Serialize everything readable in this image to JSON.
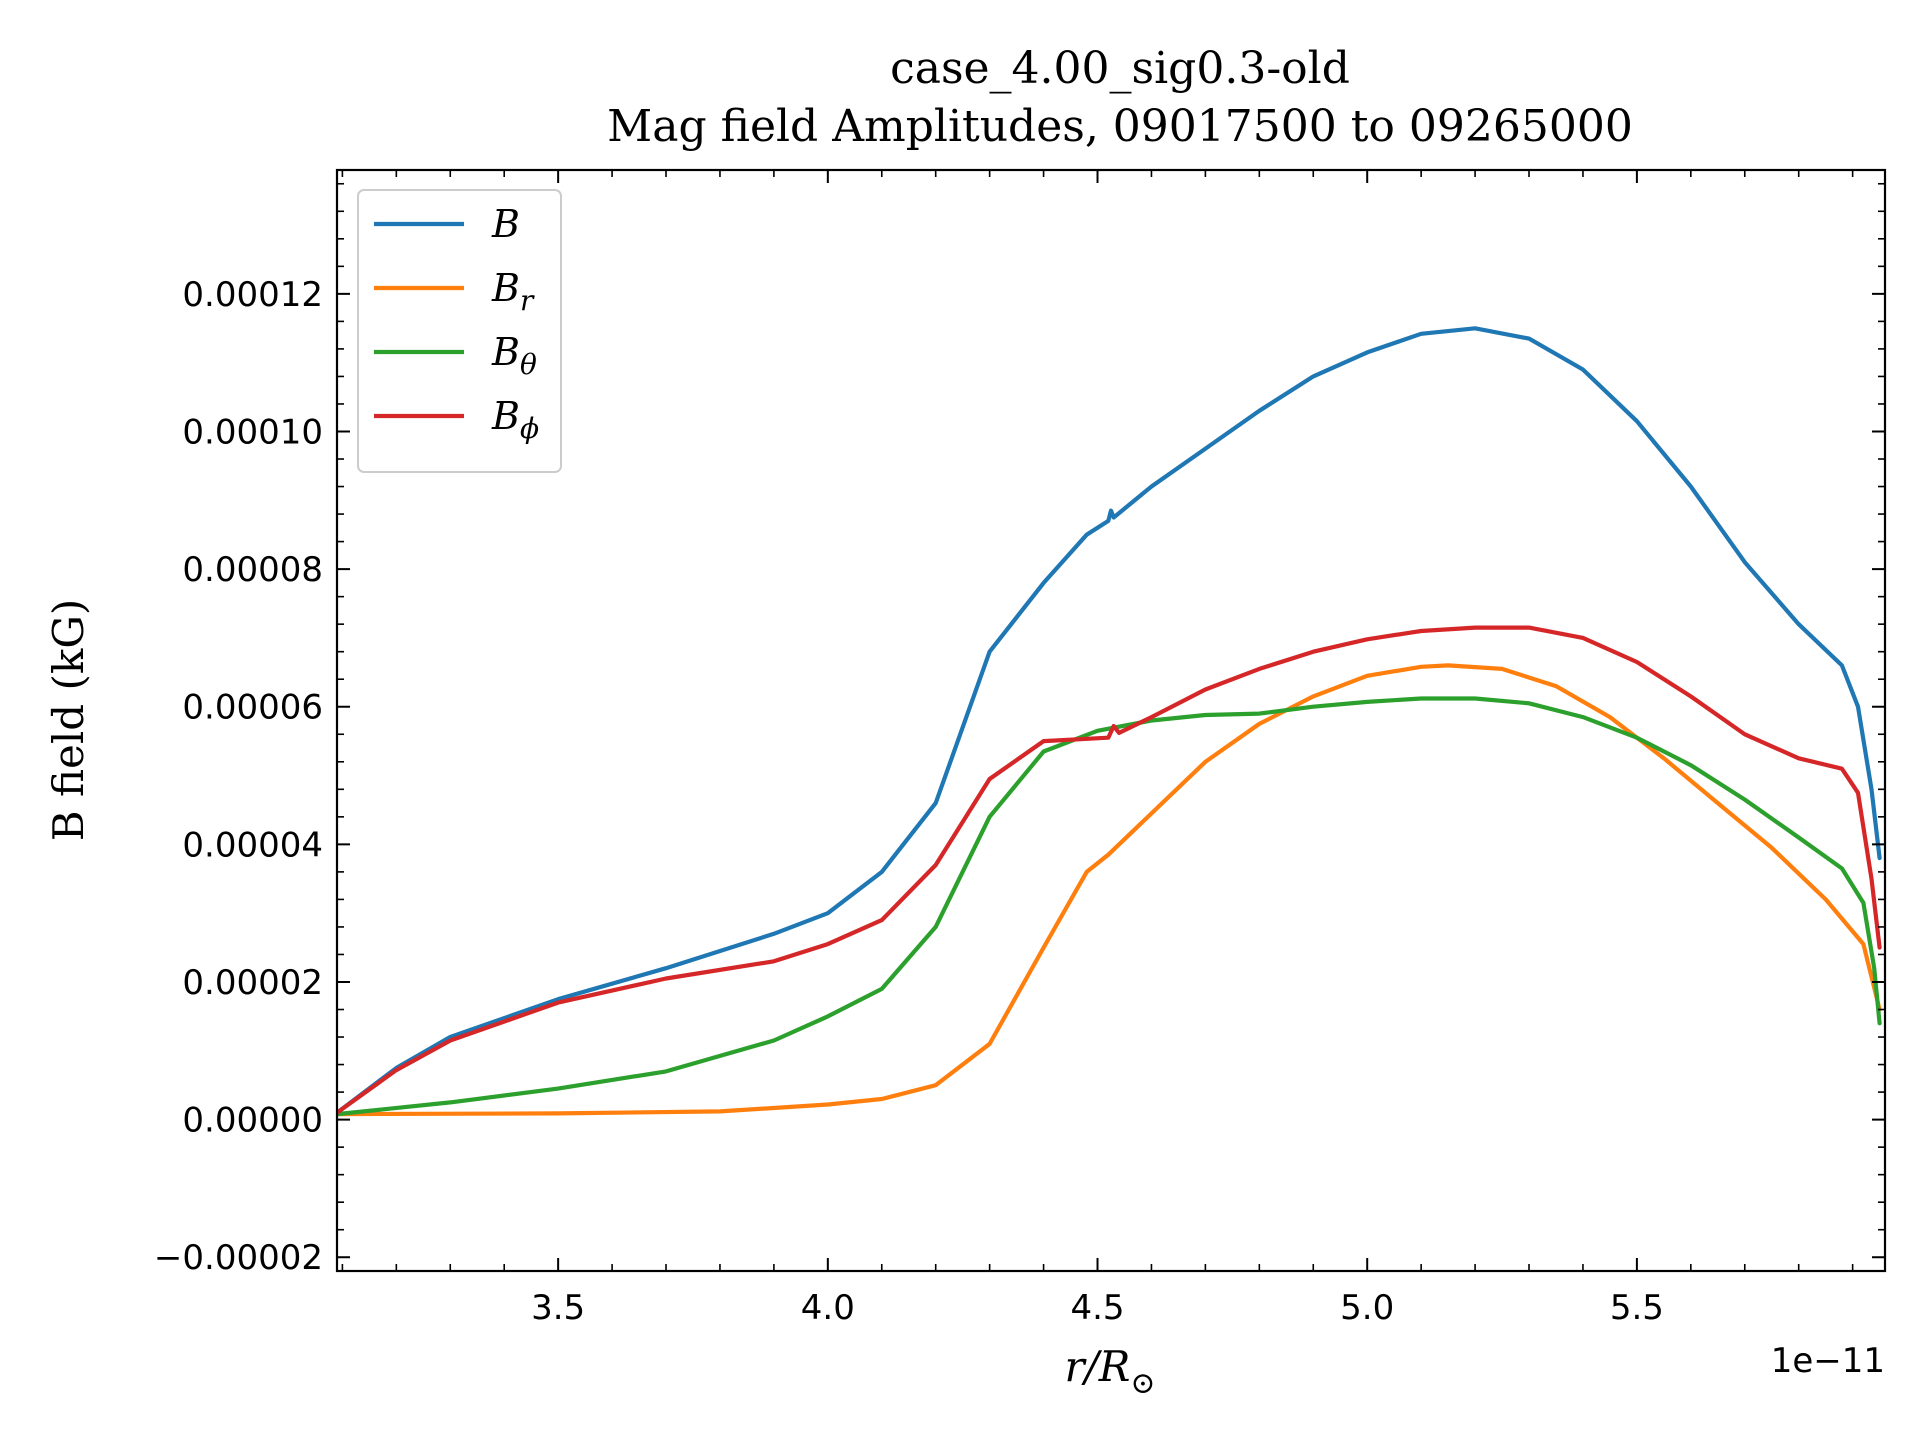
{
  "chart_data": {
    "type": "line",
    "title": "case_4.00_sig0.3-old",
    "subtitle": "Mag field Amplitudes, 09017500 to 09265000",
    "xlabel": "r/R",
    "xlabel_sub": "⊙",
    "ylabel": "B field (kG)",
    "x_offset_label": "1e−11",
    "xlim": [
      3.09,
      5.96
    ],
    "ylim": [
      -2.2e-05,
      0.000138
    ],
    "x_ticks": [
      {
        "value": 3.5,
        "label": "3.5"
      },
      {
        "value": 4.0,
        "label": "4.0"
      },
      {
        "value": 4.5,
        "label": "4.5"
      },
      {
        "value": 5.0,
        "label": "5.0"
      },
      {
        "value": 5.5,
        "label": "5.5"
      }
    ],
    "y_ticks": [
      {
        "value": -2e-05,
        "label": "−0.00002"
      },
      {
        "value": 0.0,
        "label": "0.00000"
      },
      {
        "value": 2e-05,
        "label": "0.00002"
      },
      {
        "value": 4e-05,
        "label": "0.00004"
      },
      {
        "value": 6e-05,
        "label": "0.00006"
      },
      {
        "value": 8e-05,
        "label": "0.00008"
      },
      {
        "value": 0.0001,
        "label": "0.00010"
      },
      {
        "value": 0.00012,
        "label": "0.00012"
      }
    ],
    "grid": false,
    "legend_position": "top-left",
    "series": [
      {
        "name": "B",
        "name_sub": "",
        "color": "#1f77b4",
        "points": [
          [
            3.09,
            1e-06
          ],
          [
            3.2,
            7.5e-06
          ],
          [
            3.3,
            1.2e-05
          ],
          [
            3.5,
            1.75e-05
          ],
          [
            3.7,
            2.2e-05
          ],
          [
            3.9,
            2.7e-05
          ],
          [
            4.0,
            3e-05
          ],
          [
            4.1,
            3.6e-05
          ],
          [
            4.2,
            4.6e-05
          ],
          [
            4.3,
            6.8e-05
          ],
          [
            4.4,
            7.8e-05
          ],
          [
            4.48,
            8.5e-05
          ],
          [
            4.52,
            8.7e-05
          ],
          [
            4.525,
            8.85e-05
          ],
          [
            4.53,
            8.75e-05
          ],
          [
            4.6,
            9.2e-05
          ],
          [
            4.7,
            9.75e-05
          ],
          [
            4.8,
            0.000103
          ],
          [
            4.9,
            0.000108
          ],
          [
            5.0,
            0.0001115
          ],
          [
            5.1,
            0.0001142
          ],
          [
            5.2,
            0.000115
          ],
          [
            5.3,
            0.0001135
          ],
          [
            5.4,
            0.000109
          ],
          [
            5.5,
            0.0001015
          ],
          [
            5.6,
            9.2e-05
          ],
          [
            5.7,
            8.1e-05
          ],
          [
            5.8,
            7.2e-05
          ],
          [
            5.88,
            6.6e-05
          ],
          [
            5.91,
            6e-05
          ],
          [
            5.935,
            4.8e-05
          ],
          [
            5.95,
            3.8e-05
          ]
        ]
      },
      {
        "name": "B",
        "name_sub": "r",
        "color": "#ff7f0e",
        "points": [
          [
            3.09,
            8e-07
          ],
          [
            3.5,
            9e-07
          ],
          [
            3.8,
            1.2e-06
          ],
          [
            4.0,
            2.2e-06
          ],
          [
            4.1,
            3e-06
          ],
          [
            4.2,
            5e-06
          ],
          [
            4.3,
            1.1e-05
          ],
          [
            4.4,
            2.5e-05
          ],
          [
            4.48,
            3.6e-05
          ],
          [
            4.52,
            3.85e-05
          ],
          [
            4.6,
            4.45e-05
          ],
          [
            4.7,
            5.2e-05
          ],
          [
            4.8,
            5.75e-05
          ],
          [
            4.9,
            6.15e-05
          ],
          [
            5.0,
            6.45e-05
          ],
          [
            5.1,
            6.58e-05
          ],
          [
            5.15,
            6.6e-05
          ],
          [
            5.25,
            6.55e-05
          ],
          [
            5.35,
            6.3e-05
          ],
          [
            5.45,
            5.85e-05
          ],
          [
            5.55,
            5.25e-05
          ],
          [
            5.65,
            4.6e-05
          ],
          [
            5.75,
            3.95e-05
          ],
          [
            5.85,
            3.2e-05
          ],
          [
            5.92,
            2.55e-05
          ],
          [
            5.95,
            1.6e-05
          ]
        ]
      },
      {
        "name": "B",
        "name_sub": "θ",
        "color": "#2ca02c",
        "points": [
          [
            3.09,
            8e-07
          ],
          [
            3.3,
            2.5e-06
          ],
          [
            3.5,
            4.5e-06
          ],
          [
            3.7,
            7e-06
          ],
          [
            3.9,
            1.15e-05
          ],
          [
            4.0,
            1.5e-05
          ],
          [
            4.1,
            1.9e-05
          ],
          [
            4.2,
            2.8e-05
          ],
          [
            4.3,
            4.4e-05
          ],
          [
            4.4,
            5.35e-05
          ],
          [
            4.5,
            5.65e-05
          ],
          [
            4.6,
            5.8e-05
          ],
          [
            4.7,
            5.88e-05
          ],
          [
            4.8,
            5.9e-05
          ],
          [
            4.9,
            6e-05
          ],
          [
            5.0,
            6.07e-05
          ],
          [
            5.1,
            6.12e-05
          ],
          [
            5.2,
            6.12e-05
          ],
          [
            5.3,
            6.05e-05
          ],
          [
            5.4,
            5.85e-05
          ],
          [
            5.5,
            5.55e-05
          ],
          [
            5.6,
            5.15e-05
          ],
          [
            5.7,
            4.65e-05
          ],
          [
            5.8,
            4.1e-05
          ],
          [
            5.88,
            3.65e-05
          ],
          [
            5.92,
            3.15e-05
          ],
          [
            5.94,
            2.2e-05
          ],
          [
            5.95,
            1.4e-05
          ]
        ]
      },
      {
        "name": "B",
        "name_sub": "ϕ",
        "color": "#d62728",
        "points": [
          [
            3.09,
            1e-06
          ],
          [
            3.2,
            7.2e-06
          ],
          [
            3.3,
            1.15e-05
          ],
          [
            3.5,
            1.7e-05
          ],
          [
            3.7,
            2.05e-05
          ],
          [
            3.9,
            2.3e-05
          ],
          [
            4.0,
            2.55e-05
          ],
          [
            4.1,
            2.9e-05
          ],
          [
            4.2,
            3.7e-05
          ],
          [
            4.3,
            4.95e-05
          ],
          [
            4.4,
            5.5e-05
          ],
          [
            4.52,
            5.55e-05
          ],
          [
            4.53,
            5.72e-05
          ],
          [
            4.54,
            5.62e-05
          ],
          [
            4.6,
            5.85e-05
          ],
          [
            4.7,
            6.25e-05
          ],
          [
            4.8,
            6.55e-05
          ],
          [
            4.9,
            6.8e-05
          ],
          [
            5.0,
            6.98e-05
          ],
          [
            5.1,
            7.1e-05
          ],
          [
            5.2,
            7.15e-05
          ],
          [
            5.3,
            7.15e-05
          ],
          [
            5.4,
            7e-05
          ],
          [
            5.5,
            6.65e-05
          ],
          [
            5.6,
            6.15e-05
          ],
          [
            5.7,
            5.6e-05
          ],
          [
            5.8,
            5.25e-05
          ],
          [
            5.88,
            5.1e-05
          ],
          [
            5.91,
            4.75e-05
          ],
          [
            5.935,
            3.5e-05
          ],
          [
            5.95,
            2.5e-05
          ]
        ]
      }
    ]
  }
}
